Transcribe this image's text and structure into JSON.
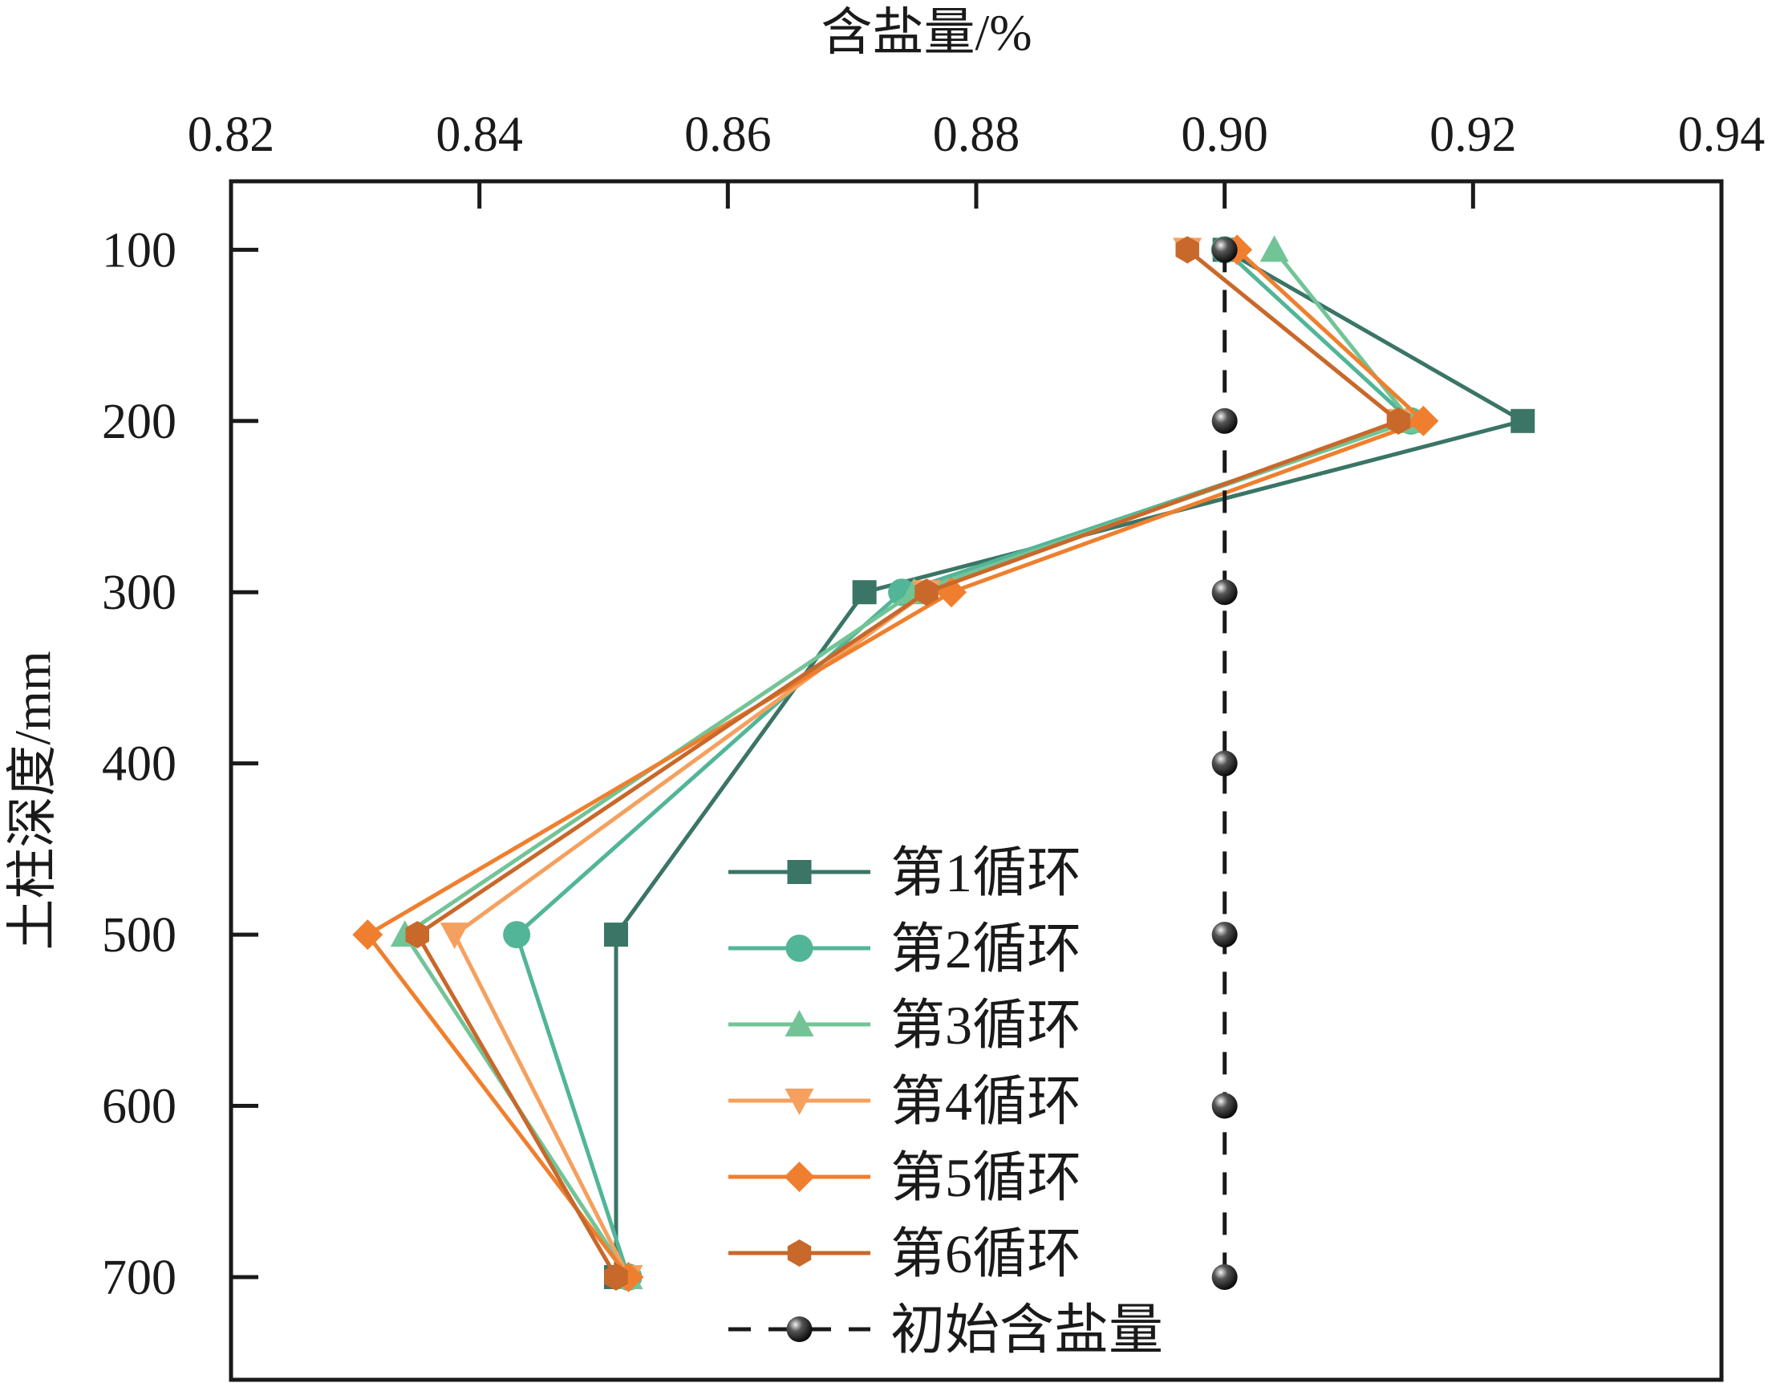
{
  "chart_data": {
    "type": "line",
    "orientation": "depth-profile",
    "xlabel": "含盐量/%",
    "ylabel": "土柱深度/mm",
    "xlim": [
      0.82,
      0.94
    ],
    "ylim": [
      60,
      760
    ],
    "y_inverted": true,
    "x_ticks": [
      0.82,
      0.84,
      0.86,
      0.88,
      0.9,
      0.92,
      0.94
    ],
    "x_tick_labels": [
      "0.82",
      "0.84",
      "0.86",
      "0.88",
      "0.90",
      "0.92",
      "0.94"
    ],
    "y_ticks": [
      100,
      200,
      300,
      400,
      500,
      600,
      700
    ],
    "y_tick_labels": [
      "100",
      "200",
      "300",
      "400",
      "500",
      "600",
      "700"
    ],
    "depths": [
      100,
      200,
      300,
      500,
      700
    ],
    "series": [
      {
        "name": "第1循环",
        "marker": "square",
        "color": "#3a7566",
        "dashed": false,
        "values": [
          0.9,
          0.924,
          0.871,
          0.851,
          0.851
        ]
      },
      {
        "name": "第2循环",
        "marker": "circle",
        "color": "#52b598",
        "dashed": false,
        "values": [
          0.9,
          0.915,
          0.874,
          0.843,
          0.852
        ]
      },
      {
        "name": "第3循环",
        "marker": "triangle-up",
        "color": "#72c496",
        "dashed": false,
        "values": [
          0.904,
          0.915,
          0.875,
          0.834,
          0.852
        ]
      },
      {
        "name": "第4循环",
        "marker": "triangle-down",
        "color": "#f5a05e",
        "dashed": false,
        "values": [
          0.897,
          0.914,
          0.876,
          0.838,
          0.852
        ]
      },
      {
        "name": "第5循环",
        "marker": "diamond",
        "color": "#ef7f2e",
        "dashed": false,
        "values": [
          0.901,
          0.916,
          0.878,
          0.831,
          0.852
        ]
      },
      {
        "name": "第6循环",
        "marker": "hexagon",
        "color": "#c8682b",
        "dashed": false,
        "values": [
          0.897,
          0.914,
          0.876,
          0.835,
          0.851
        ]
      },
      {
        "name": "初始含盐量",
        "marker": "sphere",
        "color": "#1a1a1a",
        "dashed": true,
        "depths": [
          100,
          200,
          300,
          400,
          500,
          600,
          700
        ],
        "values": [
          0.9,
          0.9,
          0.9,
          0.9,
          0.9,
          0.9,
          0.9
        ]
      }
    ],
    "legend_position": "bottom-center"
  }
}
